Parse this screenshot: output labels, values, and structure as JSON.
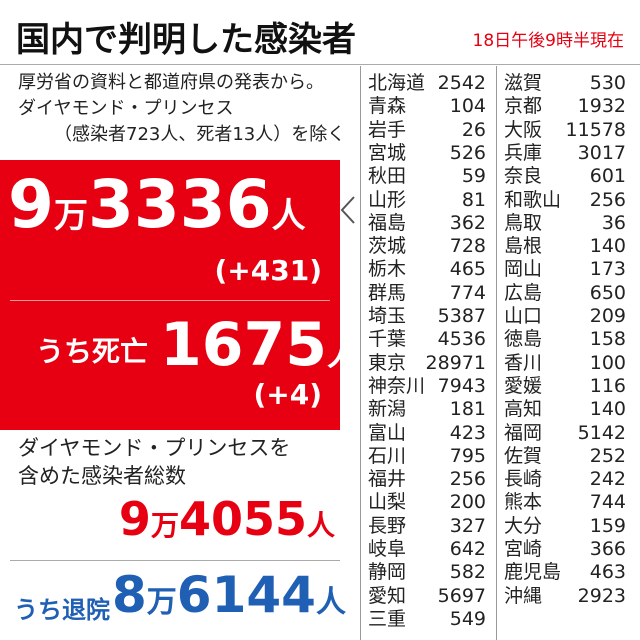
{
  "header": {
    "title": "国内で判明した感染者",
    "timestamp": "18日午後9時半現在"
  },
  "note": [
    "厚労省の資料と都道府県の発表から。",
    "ダイヤモンド・プリンセス",
    "（感染者723人、死者13人）を除く"
  ],
  "domestic": {
    "cases": {
      "man": "9",
      "man_unit": "万",
      "rest": "3336",
      "unit": "人",
      "change": "(+431)"
    },
    "deaths": {
      "label": "うち死亡",
      "value": "1675",
      "unit": "人",
      "change": "(+4)"
    }
  },
  "including_ship": {
    "label": [
      "ダイヤモンド・プリンセスを",
      "含めた感染者総数"
    ],
    "man": "9",
    "man_unit": "万",
    "rest": "4055",
    "unit": "人"
  },
  "recovered": {
    "label": "うち退院",
    "man": "8",
    "man_unit": "万",
    "rest": "6144",
    "unit": "人"
  },
  "table": {
    "columns": [
      [
        [
          "北海道",
          2542
        ],
        [
          "青森",
          104
        ],
        [
          "岩手",
          26
        ],
        [
          "宮城",
          526
        ],
        [
          "秋田",
          59
        ],
        [
          "山形",
          81
        ],
        [
          "福島",
          362
        ],
        [
          "茨城",
          728
        ],
        [
          "栃木",
          465
        ],
        [
          "群馬",
          774
        ],
        [
          "埼玉",
          5387
        ],
        [
          "千葉",
          4536
        ],
        [
          "東京",
          28971
        ],
        [
          "神奈川",
          7943
        ],
        [
          "新潟",
          181
        ],
        [
          "富山",
          423
        ],
        [
          "石川",
          795
        ],
        [
          "福井",
          256
        ],
        [
          "山梨",
          200
        ],
        [
          "長野",
          327
        ],
        [
          "岐阜",
          642
        ],
        [
          "静岡",
          582
        ],
        [
          "愛知",
          5697
        ],
        [
          "三重",
          549
        ]
      ],
      [
        [
          "滋賀",
          530
        ],
        [
          "京都",
          1932
        ],
        [
          "大阪",
          11578
        ],
        [
          "兵庫",
          3017
        ],
        [
          "奈良",
          601
        ],
        [
          "和歌山",
          256
        ],
        [
          "鳥取",
          36
        ],
        [
          "島根",
          140
        ],
        [
          "岡山",
          173
        ],
        [
          "広島",
          650
        ],
        [
          "山口",
          209
        ],
        [
          "徳島",
          158
        ],
        [
          "香川",
          100
        ],
        [
          "愛媛",
          116
        ],
        [
          "高知",
          140
        ],
        [
          "福岡",
          5142
        ],
        [
          "佐賀",
          252
        ],
        [
          "長崎",
          242
        ],
        [
          "熊本",
          744
        ],
        [
          "大分",
          159
        ],
        [
          "宮崎",
          366
        ],
        [
          "鹿児島",
          463
        ],
        [
          "沖縄",
          2923
        ]
      ]
    ]
  }
}
